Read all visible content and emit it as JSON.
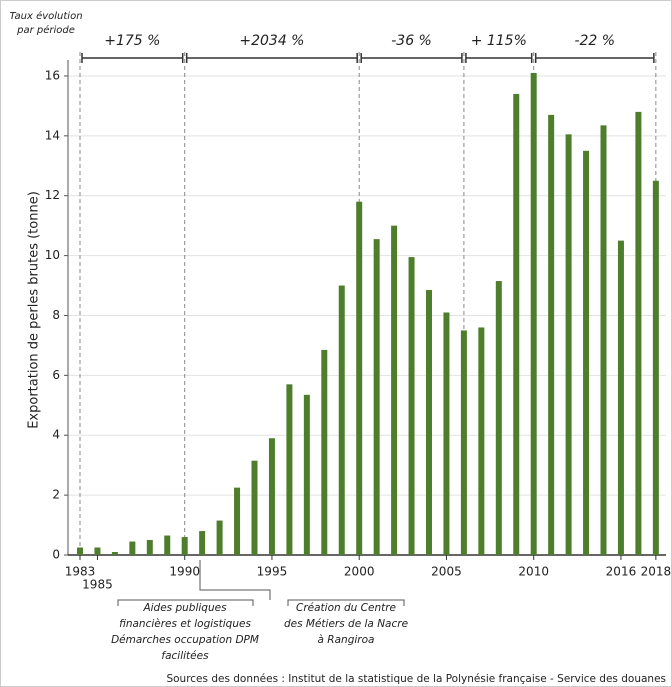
{
  "chart_data": {
    "type": "bar",
    "y_label": "Exportation de perles brutes (tonne)",
    "rate_heading": [
      "Taux évolution",
      "par période"
    ],
    "periods": [
      "+175 %",
      "+2034 %",
      "-36 %",
      "+ 115%",
      "-22 %"
    ],
    "categories": [
      "1983",
      "1985",
      null,
      null,
      null,
      null,
      "1990",
      null,
      null,
      null,
      null,
      "1995",
      null,
      null,
      null,
      null,
      "2000",
      null,
      null,
      null,
      null,
      "2005",
      null,
      null,
      null,
      null,
      "2010",
      null,
      null,
      null,
      null,
      "2016",
      null,
      "2018"
    ],
    "values": [
      0.25,
      0.25,
      0.1,
      0.45,
      0.5,
      0.65,
      0.6,
      0.8,
      1.15,
      2.25,
      3.15,
      3.9,
      5.7,
      5.35,
      6.85,
      9.0,
      11.8,
      10.55,
      11.0,
      9.95,
      8.85,
      8.1,
      7.5,
      7.6,
      9.15,
      15.4,
      16.1,
      14.7,
      14.05,
      13.5,
      14.35,
      10.5,
      14.8,
      12.5
    ],
    "color": "#4e7d2b",
    "ylim": [
      0,
      16.7
    ],
    "yticks": [
      0,
      2,
      4,
      6,
      8,
      10,
      12,
      14,
      16
    ],
    "grid": true,
    "notes": [
      [
        "Aides publiques",
        "financières et logistiques",
        "Démarches occupation DPM",
        "facilitées"
      ],
      [
        "Création du Centre",
        "des Métiers de la Nacre",
        "à Rangiroa"
      ]
    ],
    "source": "Sources des données : Institut de la statistique de la Polynésie française - Service des douanes"
  }
}
